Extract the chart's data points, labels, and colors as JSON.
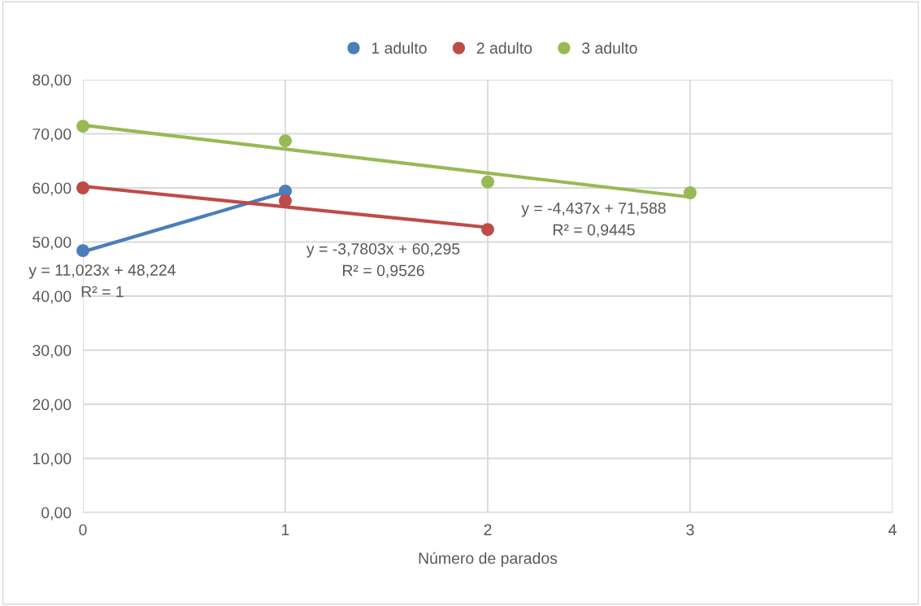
{
  "chart_data": {
    "type": "scatter",
    "xlabel": "Número de parados",
    "xlim": [
      0,
      4
    ],
    "xticks": [
      0,
      1,
      2,
      3,
      4
    ],
    "ylim": [
      0,
      80
    ],
    "yticks": [
      {
        "value": 0,
        "label": "0,00"
      },
      {
        "value": 10,
        "label": "10,00"
      },
      {
        "value": 20,
        "label": "20,00"
      },
      {
        "value": 30,
        "label": "30,00"
      },
      {
        "value": 40,
        "label": "40,00"
      },
      {
        "value": 50,
        "label": "50,00"
      },
      {
        "value": 60,
        "label": "60,00"
      },
      {
        "value": 70,
        "label": "70,00"
      },
      {
        "value": 80,
        "label": "80,00"
      }
    ],
    "grid": true,
    "legend": "top",
    "series": [
      {
        "name": "1 adulto",
        "color": "#4a7ebb",
        "marker": "circle",
        "x": [
          0,
          1
        ],
        "values": [
          48.4,
          59.4
        ]
      },
      {
        "name": "2 adulto",
        "color": "#be4b48",
        "marker": "circle",
        "x": [
          0,
          1,
          2
        ],
        "values": [
          60.0,
          57.6,
          52.3
        ]
      },
      {
        "name": "3 adulto",
        "color": "#98b954",
        "marker": "circle",
        "x": [
          0,
          1,
          2,
          3
        ],
        "values": [
          71.4,
          68.7,
          61.1,
          59.1
        ]
      },
      {
        "type": "line",
        "color": "#4a7ebb",
        "marker": "none",
        "x": [
          0,
          1
        ],
        "values": [
          48.2,
          59.2
        ]
      },
      {
        "type": "line",
        "color": "#be4b48",
        "marker": "none",
        "x": [
          0,
          2
        ],
        "values": [
          60.3,
          52.7
        ]
      },
      {
        "type": "line",
        "color": "#98b954",
        "marker": "none",
        "x": [
          0,
          3
        ],
        "values": [
          71.6,
          58.3
        ]
      }
    ],
    "annotations": [
      "y = 11,023x + 48,224\nR² = 1",
      "y = -3,7803x + 60,295\nR² = 0,9526",
      "y = -4,437x + 71,588\nR² = 0,9445"
    ]
  }
}
